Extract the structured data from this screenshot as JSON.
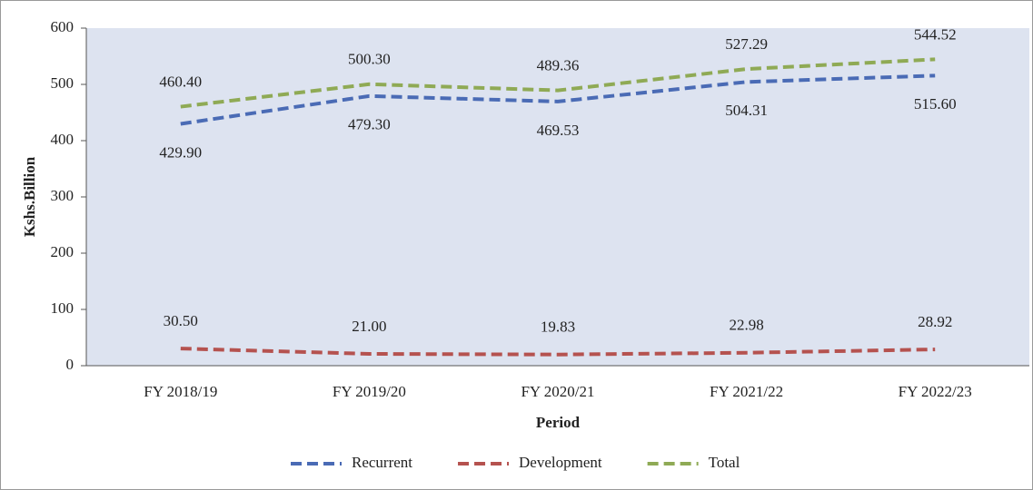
{
  "chart_data": {
    "type": "line",
    "x_label": "Period",
    "y_label": "Kshs.Billion",
    "categories": [
      "FY 2018/19",
      "FY 2019/20",
      "FY 2020/21",
      "FY 2021/22",
      "FY 2022/23"
    ],
    "series": [
      {
        "name": "Recurrent",
        "color": "#4a6bb5",
        "values": [
          429.9,
          479.3,
          469.53,
          504.31,
          515.6
        ],
        "value_labels": [
          "429.90",
          "479.30",
          "469.53",
          "504.31",
          "515.60"
        ]
      },
      {
        "name": "Development",
        "color": "#b5524f",
        "values": [
          30.5,
          21.0,
          19.83,
          22.98,
          28.92
        ],
        "value_labels": [
          "30.50",
          "21.00",
          "19.83",
          "22.98",
          "28.92"
        ]
      },
      {
        "name": "Total",
        "color": "#8faa55",
        "values": [
          460.4,
          500.3,
          489.36,
          527.29,
          544.52
        ],
        "value_labels": [
          "460.40",
          "500.30",
          "489.36",
          "527.29",
          "544.52"
        ]
      }
    ],
    "ylim": [
      0,
      600
    ],
    "yticks": [
      0,
      100,
      200,
      300,
      400,
      500,
      600
    ],
    "legend": "bottom"
  }
}
